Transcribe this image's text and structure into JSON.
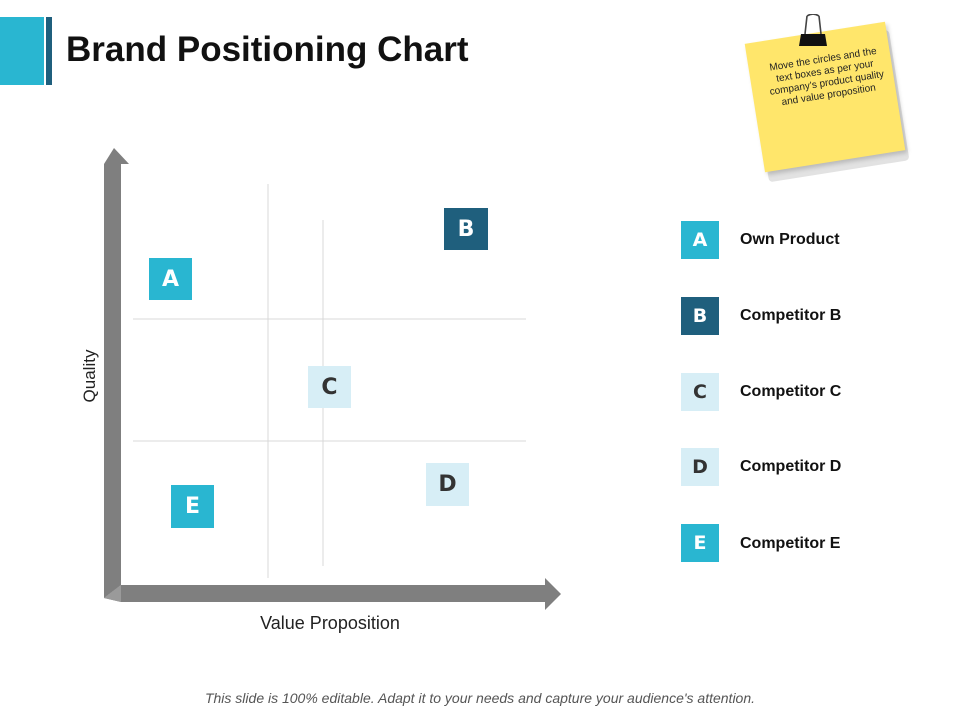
{
  "title": "Brand Positioning Chart",
  "sticky_note": "Move the circles and the text boxes as per your company’s product quality and value proposition",
  "axes": {
    "x_label": "Value  Proposition",
    "y_label": "Quality"
  },
  "markers": [
    {
      "letter": "A",
      "style": "teal"
    },
    {
      "letter": "B",
      "style": "dark"
    },
    {
      "letter": "C",
      "style": "light"
    },
    {
      "letter": "D",
      "style": "light"
    },
    {
      "letter": "E",
      "style": "teal"
    }
  ],
  "legend": [
    {
      "letter": "A",
      "label": "Own Product",
      "style": "teal"
    },
    {
      "letter": "B",
      "label": "Competitor B",
      "style": "dark"
    },
    {
      "letter": "C",
      "label": "Competitor C",
      "style": "light"
    },
    {
      "letter": "D",
      "label": "Competitor D",
      "style": "light"
    },
    {
      "letter": "E",
      "label": "Competitor E",
      "style": "teal"
    }
  ],
  "footer": "This slide is 100% editable. Adapt it to your needs and capture your audience's attention.",
  "colors": {
    "teal": "#29b6d1",
    "dark": "#1f5f7d",
    "light": "#d7eef6",
    "axis": "#7f7f7f",
    "grid": "#d9d9d9",
    "note": "#ffe66b"
  }
}
